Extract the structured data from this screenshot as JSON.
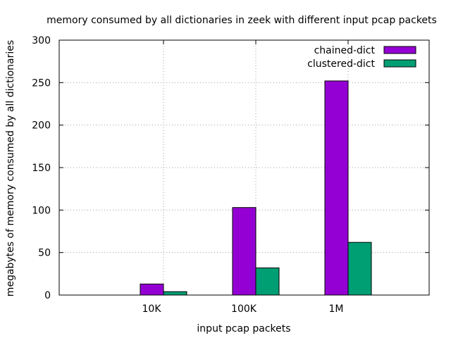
{
  "chart_data": {
    "type": "bar",
    "title": "memory consumed by all dictionaries in zeek with different input pcap packets",
    "xlabel": "input pcap packets",
    "ylabel": "megabytes of memory consumed by all dictionaries",
    "categories": [
      "10K",
      "100K",
      "1M"
    ],
    "series": [
      {
        "name": "chained-dict",
        "color": "#9400d3",
        "values": [
          13,
          103,
          252
        ]
      },
      {
        "name": "clustered-dict",
        "color": "#009e73",
        "values": [
          4,
          32,
          62
        ]
      }
    ],
    "ylim": [
      0,
      300
    ],
    "yticks": [
      0,
      50,
      100,
      150,
      200,
      250,
      300
    ],
    "grid": true,
    "legend_position": "top-right"
  }
}
